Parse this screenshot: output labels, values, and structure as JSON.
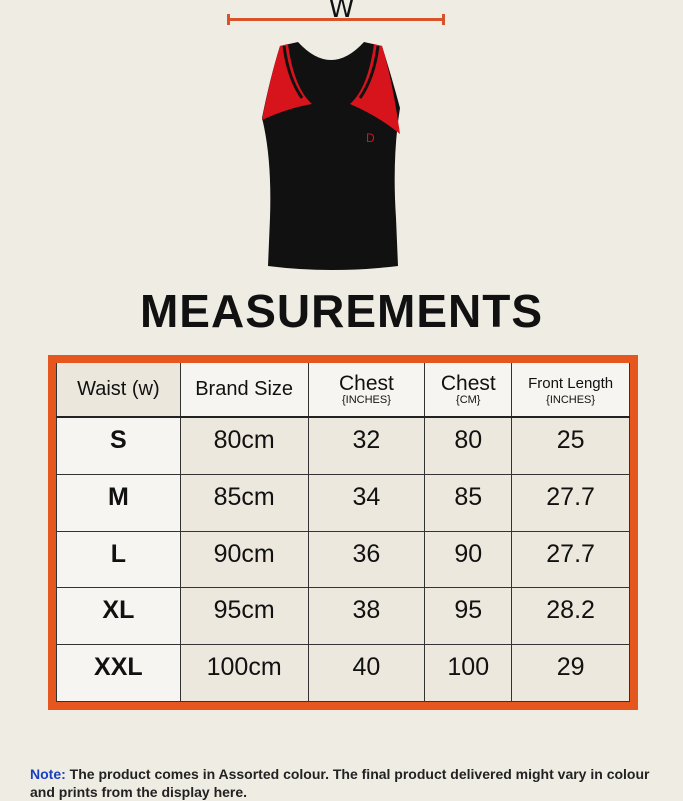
{
  "diagram": {
    "width_label": "W",
    "accent_color": "#d9532a"
  },
  "title": "MEASUREMENTS",
  "table": {
    "border_color": "#e5571f",
    "headers": [
      {
        "main": "Waist (w)",
        "sub": ""
      },
      {
        "main": "Brand Size",
        "sub": ""
      },
      {
        "main": "Chest",
        "sub": "{INCHES}"
      },
      {
        "main": "Chest",
        "sub": "{CM}"
      },
      {
        "main": "Front Length",
        "sub": "{INCHES}"
      }
    ],
    "rows": [
      [
        "S",
        "80cm",
        "32",
        "80",
        "25"
      ],
      [
        "M",
        "85cm",
        "34",
        "85",
        "27.7"
      ],
      [
        "L",
        "90cm",
        "36",
        "90",
        "27.7"
      ],
      [
        "XL",
        "95cm",
        "38",
        "95",
        "28.2"
      ],
      [
        "XXL",
        "100cm",
        "40",
        "100",
        "29"
      ]
    ]
  },
  "note": {
    "label": "Note:",
    "text": " The product comes in Assorted colour. The final product delivered might vary in colour and prints from the display here."
  }
}
